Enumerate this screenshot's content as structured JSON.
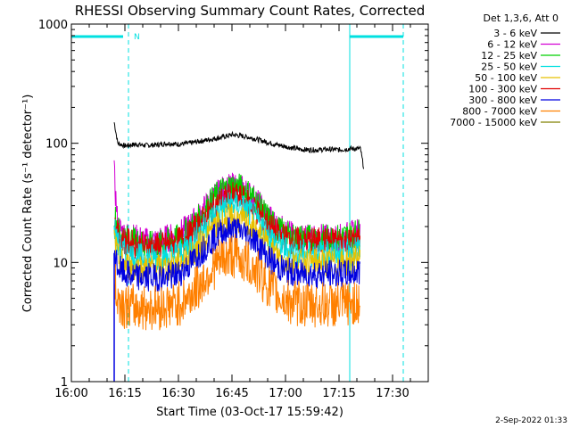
{
  "chart_data": {
    "type": "line",
    "title": "RHESSI Observing Summary Count Rates, Corrected",
    "xlabel": "Start Time (03-Oct-17 15:59:42)",
    "ylabel": "Corrected Count Rate (s⁻¹ detector⁻¹)",
    "yscale": "log",
    "ylim": [
      1,
      1000
    ],
    "xlim_minutes_after_1600": [
      0,
      100
    ],
    "x_tick_labels": [
      "16:00",
      "16:15",
      "16:30",
      "16:45",
      "17:00",
      "17:15",
      "17:30"
    ],
    "x_tick_minutes": [
      0,
      15,
      30,
      45,
      60,
      75,
      90
    ],
    "y_tick_labels": [
      "1",
      "10",
      "100",
      "1000"
    ],
    "y_tick_values": [
      1,
      10,
      100,
      1000
    ],
    "legend_title": "Det 1,3,6, Att 0",
    "legend_position": "top-right outside",
    "night_markers_minutes": [
      0,
      16,
      78,
      93
    ],
    "saa_flag_label": "N",
    "series": [
      {
        "name": "3 - 6 keV",
        "color": "#000000",
        "x": [
          12,
          13,
          15,
          18,
          21,
          24,
          27,
          30,
          33,
          36,
          39,
          42,
          45,
          48,
          51,
          54,
          57,
          60,
          63,
          66,
          69,
          72,
          75,
          78,
          81,
          82
        ],
        "values": [
          150,
          100,
          95,
          98,
          96,
          97,
          100,
          98,
          100,
          104,
          108,
          112,
          118,
          115,
          110,
          104,
          98,
          94,
          90,
          88,
          88,
          89,
          88,
          90,
          90,
          60
        ]
      },
      {
        "name": "6 - 12 keV",
        "color": "#d400d4",
        "x": [
          12,
          13,
          15,
          18,
          21,
          24,
          27,
          30,
          33,
          36,
          39,
          42,
          45,
          48,
          51,
          54,
          57,
          60,
          63,
          66,
          69,
          72,
          75,
          78,
          81
        ],
        "values": [
          55,
          20,
          17,
          16,
          15,
          15,
          16,
          17,
          20,
          25,
          33,
          40,
          43,
          41,
          35,
          27,
          21,
          18,
          16,
          16,
          16,
          16,
          16,
          17,
          18
        ]
      },
      {
        "name": "12 - 25 keV",
        "color": "#00d000",
        "x": [
          12,
          13,
          15,
          18,
          21,
          24,
          27,
          30,
          33,
          36,
          39,
          42,
          45,
          48,
          51,
          54,
          57,
          60,
          63,
          66,
          69,
          72,
          75,
          78,
          81
        ],
        "values": [
          26,
          19,
          16,
          15,
          14,
          14,
          15,
          16,
          19,
          24,
          32,
          40,
          44,
          42,
          35,
          26,
          20,
          17,
          16,
          16,
          16,
          16,
          16,
          17,
          18
        ]
      },
      {
        "name": "25 - 50 keV",
        "color": "#00e0e0",
        "x": [
          12,
          13,
          15,
          18,
          21,
          24,
          27,
          30,
          33,
          36,
          39,
          42,
          45,
          48,
          51,
          54,
          57,
          60,
          63,
          66,
          69,
          72,
          75,
          78,
          81
        ],
        "values": [
          20,
          14,
          12,
          11,
          11,
          11,
          11,
          12,
          14,
          18,
          23,
          28,
          31,
          29,
          25,
          19,
          15,
          13,
          12,
          12,
          12,
          12,
          12,
          12,
          13
        ]
      },
      {
        "name": "50 - 100 keV",
        "color": "#e8c000",
        "x": [
          12,
          13,
          15,
          18,
          21,
          24,
          27,
          30,
          33,
          36,
          39,
          42,
          45,
          48,
          51,
          54,
          57,
          60,
          63,
          66,
          69,
          72,
          75,
          78,
          81
        ],
        "values": [
          16,
          11,
          9.5,
          9,
          9,
          9,
          9,
          10,
          11,
          14,
          18,
          22,
          24,
          22,
          19,
          15,
          12,
          10,
          10,
          10,
          10,
          10,
          10,
          10,
          11
        ]
      },
      {
        "name": "100 - 300 keV",
        "color": "#e00000",
        "x": [
          12,
          13,
          15,
          18,
          21,
          24,
          27,
          30,
          33,
          36,
          39,
          42,
          45,
          48,
          51,
          54,
          57,
          60,
          63,
          66,
          69,
          72,
          75,
          78,
          81
        ],
        "values": [
          22,
          17,
          15,
          14,
          13.5,
          13.5,
          14,
          15,
          17,
          21,
          27,
          33,
          36,
          34,
          29,
          23,
          18,
          16,
          15,
          15,
          15,
          15,
          15,
          15,
          16
        ]
      },
      {
        "name": "300 - 800 keV",
        "color": "#0000e0",
        "x": [
          12,
          13,
          15,
          18,
          21,
          24,
          27,
          30,
          33,
          36,
          39,
          42,
          45,
          48,
          51,
          54,
          57,
          60,
          63,
          66,
          69,
          72,
          75,
          78,
          81
        ],
        "values": [
          12,
          9,
          8,
          7.5,
          7.5,
          7.5,
          7.5,
          8,
          9.5,
          12,
          15,
          18,
          19,
          18,
          16,
          12,
          9.5,
          8.5,
          8,
          8,
          8,
          8,
          8,
          8,
          8.5
        ]
      },
      {
        "name": "800 - 7000 keV",
        "color": "#ff8000",
        "x": [
          12,
          13,
          15,
          18,
          21,
          24,
          27,
          30,
          33,
          36,
          39,
          42,
          45,
          48,
          51,
          54,
          57,
          60,
          63,
          66,
          69,
          72,
          75,
          78,
          81
        ],
        "values": [
          7,
          5,
          4.3,
          4.2,
          4.2,
          4.2,
          4.3,
          4.5,
          5.2,
          6.5,
          8.5,
          10.5,
          11.5,
          10.5,
          9,
          7,
          5.5,
          4.8,
          4.5,
          4.4,
          4.4,
          4.4,
          4.4,
          4.5,
          4.6
        ]
      },
      {
        "name": "7000 - 15000 keV",
        "color": "#808000",
        "x": [],
        "values": []
      }
    ]
  },
  "footer": {
    "date_stamp": "2-Sep-2022 01:33"
  }
}
